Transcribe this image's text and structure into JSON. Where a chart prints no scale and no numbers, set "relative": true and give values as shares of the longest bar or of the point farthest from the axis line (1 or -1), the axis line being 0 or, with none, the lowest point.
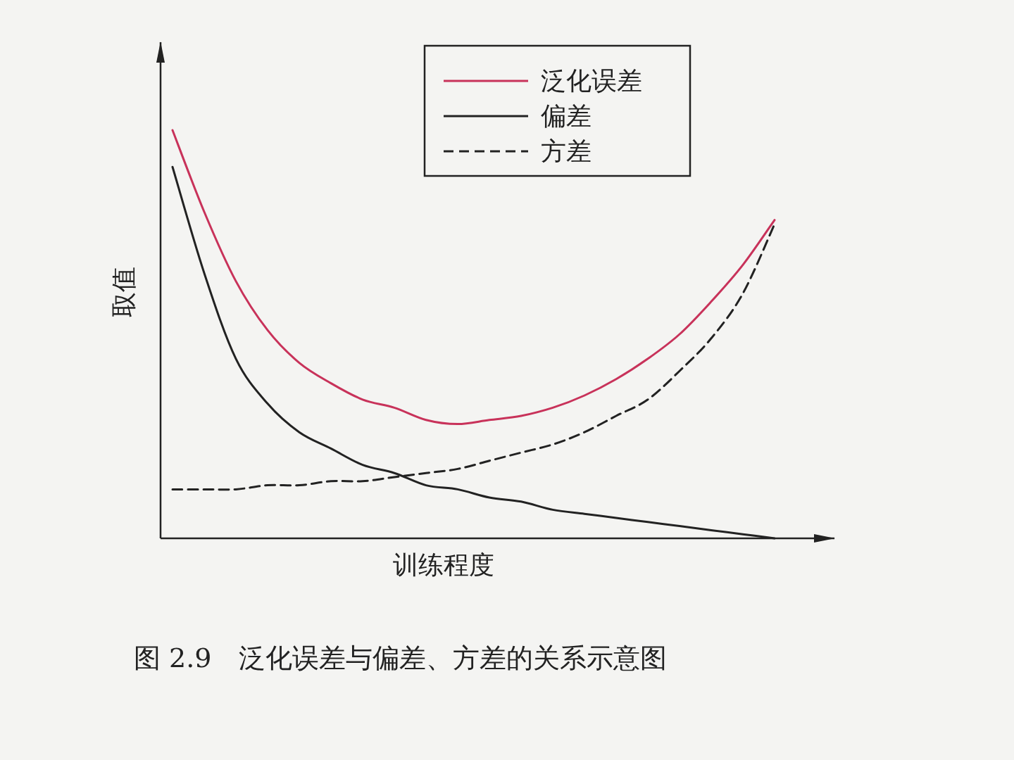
{
  "chart_data": {
    "type": "line",
    "xlabel": "训练程度",
    "ylabel": "取值",
    "relative": true,
    "legend": "top right",
    "categories": [
      null,
      null,
      null,
      null,
      null,
      null,
      null,
      null,
      null,
      null,
      null,
      null,
      null,
      null,
      null,
      null,
      null,
      null,
      null,
      null
    ],
    "series": [
      {
        "name": "泛化误差",
        "color": "#c8325a",
        "line_style": "solid",
        "values": [
          1,
          0.8,
          0.63,
          0.51,
          0.43,
          0.38,
          0.34,
          0.32,
          0.29,
          0.28,
          0.29,
          0.3,
          0.32,
          0.35,
          0.39,
          0.44,
          0.5,
          0.58,
          0.67,
          0.78
        ]
      },
      {
        "name": "偏差",
        "color": "#222222",
        "line_style": "solid",
        "values": [
          0.91,
          0.65,
          0.44,
          0.33,
          0.26,
          0.22,
          0.18,
          0.16,
          0.13,
          0.12,
          0.1,
          0.09,
          0.07,
          0.06,
          0.05,
          0.04,
          0.03,
          0.02,
          0.01,
          0
        ]
      },
      {
        "name": "方差",
        "color": "#222222",
        "line_style": "dashed",
        "values": [
          0.12,
          0.12,
          0.12,
          0.13,
          0.13,
          0.14,
          0.14,
          0.15,
          0.16,
          0.17,
          0.19,
          0.21,
          0.23,
          0.26,
          0.3,
          0.34,
          0.41,
          0.49,
          0.6,
          0.77
        ]
      }
    ],
    "annotations": [
      "图 2.9　泛化误差与偏差、方差的关系示意图"
    ]
  }
}
